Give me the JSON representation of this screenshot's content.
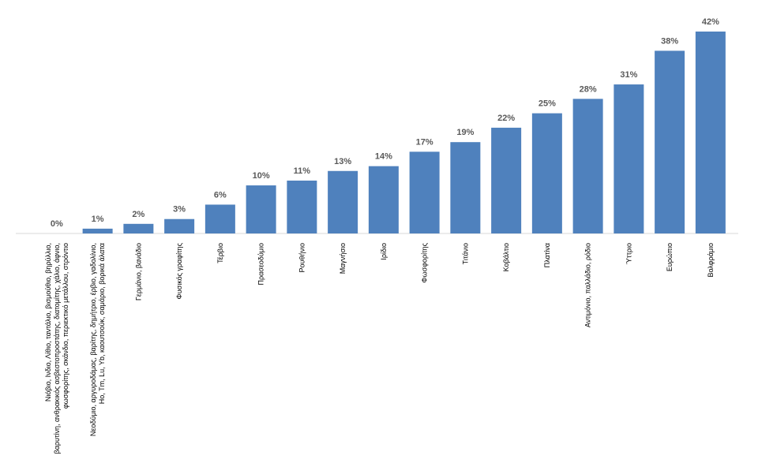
{
  "chart_data": {
    "type": "bar",
    "categories": [
      "Νιόβιο, Ινδιο, Λίθιο, ταντάλιο, βισμούθιο, βηρύλλιο,\nβαρυτίνη, ανθρακικός ασβεστοπροστάτης, διατομίτης, χάλιο, άφνιο,\nφωσφορίτης, σκάνδιο, περιεκτικό μετάλλου, στρόντιο",
      "Νεοδύμιο, αργυροδάμας, βαρίτης, δημήτριο, έρβιο, γαδολίνιο,\nHo, Tm, Lu, Yb, καουτσούκ, σαμάριο, βορικά άλατα",
      "Γερμάνιο, βανάδιο",
      "Φυσικός γραφίτης",
      "Τέρβιο",
      "Πρασεοδύμιο",
      "Ρουθήνιο",
      "Μαγνήσιο",
      "Ιρίδιο",
      "Φωσφορίτης",
      "Τιτάνιο",
      "Κοβάλτιο",
      "Πλατίνα",
      "Αντιμόνιο, παλλάδιο, ρόδιο",
      "Ύττριο",
      "Ευρώπιο",
      "Βολφράμιο"
    ],
    "values": [
      0,
      1,
      2,
      3,
      6,
      10,
      11,
      13,
      14,
      17,
      19,
      22,
      25,
      28,
      31,
      38,
      42
    ],
    "value_labels": [
      "0%",
      "1%",
      "2%",
      "3%",
      "6%",
      "10%",
      "11%",
      "13%",
      "14%",
      "17%",
      "19%",
      "22%",
      "25%",
      "28%",
      "31%",
      "38%",
      "42%"
    ],
    "color": "#4f81bd",
    "ylim": [
      0,
      42
    ]
  }
}
